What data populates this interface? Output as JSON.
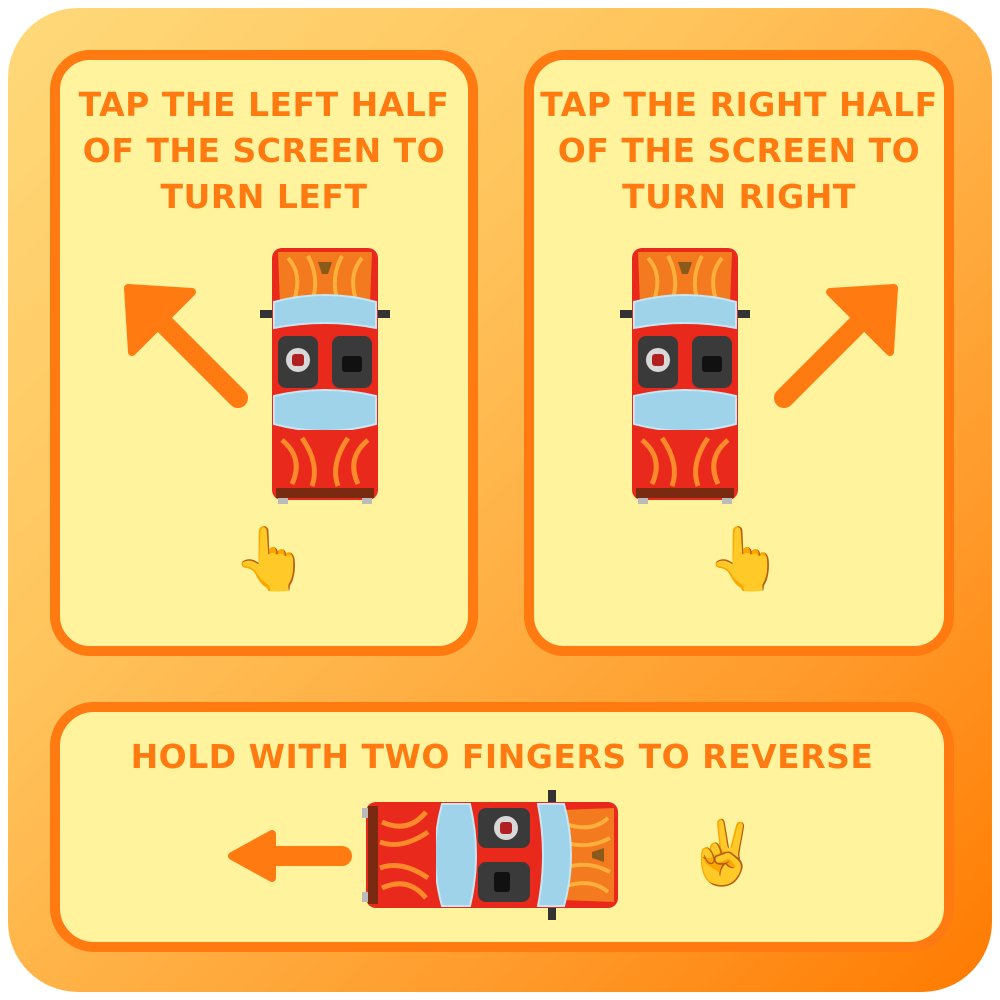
{
  "panels": {
    "left": {
      "title_lines": [
        "TAP THE LEFT HALF",
        "OF THE SCREEN TO",
        "TURN LEFT"
      ],
      "hand_glyph": "👆",
      "arrow_direction": "up-left"
    },
    "right": {
      "title_lines": [
        "TAP THE RIGHT HALF",
        "OF THE SCREEN TO",
        "TURN RIGHT"
      ],
      "hand_glyph": "👆",
      "arrow_direction": "up-right"
    },
    "bottom": {
      "title": "HOLD WITH TWO FINGERS TO REVERSE",
      "hand_glyph": "✌️",
      "arrow_direction": "left"
    }
  },
  "icons": {
    "car": "car-top-view-icon",
    "arrow": "arrow-icon",
    "tap_hand": "pointing-up-hand-icon",
    "two_fingers": "victory-hand-icon"
  },
  "colors": {
    "frame_light": "#ffd97a",
    "frame_dark": "#ff7a00",
    "panel_fill": "#fff39d",
    "accent_orange": "#ff7a10",
    "car_red": "#e8291c",
    "car_glass": "#9fd3ea"
  }
}
